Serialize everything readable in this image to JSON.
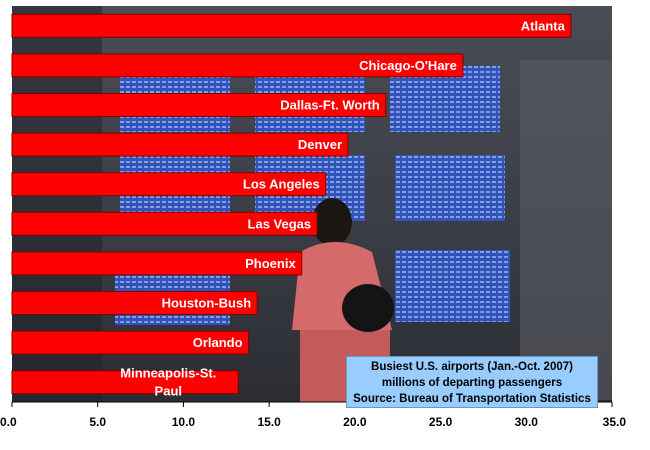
{
  "chart_data": {
    "type": "bar",
    "orientation": "horizontal",
    "categories": [
      "Atlanta",
      "Chicago-O'Hare",
      "Dallas-Ft. Worth",
      "Denver",
      "Los Angeles",
      "Las Vegas",
      "Phoenix",
      "Houston-Bush",
      "Orlando",
      "Minneapolis-St. Paul"
    ],
    "label_lines": [
      [
        "Atlanta"
      ],
      [
        "Chicago-O'Hare"
      ],
      [
        "Dallas-Ft. Worth"
      ],
      [
        "Denver"
      ],
      [
        "Los Angeles"
      ],
      [
        "Las Vegas"
      ],
      [
        "Phoenix"
      ],
      [
        "Houston-Bush"
      ],
      [
        "Orlando"
      ],
      [
        "Minneapolis-St.",
        "Paul"
      ]
    ],
    "values": [
      32.6,
      26.3,
      21.8,
      19.6,
      18.3,
      17.8,
      16.9,
      14.3,
      13.8,
      13.2
    ],
    "xlim": [
      0,
      35
    ],
    "xticks": [
      "0.0",
      "5.0",
      "10.0",
      "15.0",
      "20.0",
      "25.0",
      "30.0",
      "35.0"
    ],
    "title": "",
    "xlabel": "",
    "ylabel": "",
    "grid": false,
    "bar_color": "#ff0000",
    "bar_border_color": "#800000",
    "background": "photo of airport departure boards"
  },
  "note": {
    "line1": "Busiest U.S. airports (Jan.-Oct. 2007)",
    "line2": "millions of departing passengers",
    "line3": "Source: Bureau of Transportation Statistics"
  }
}
